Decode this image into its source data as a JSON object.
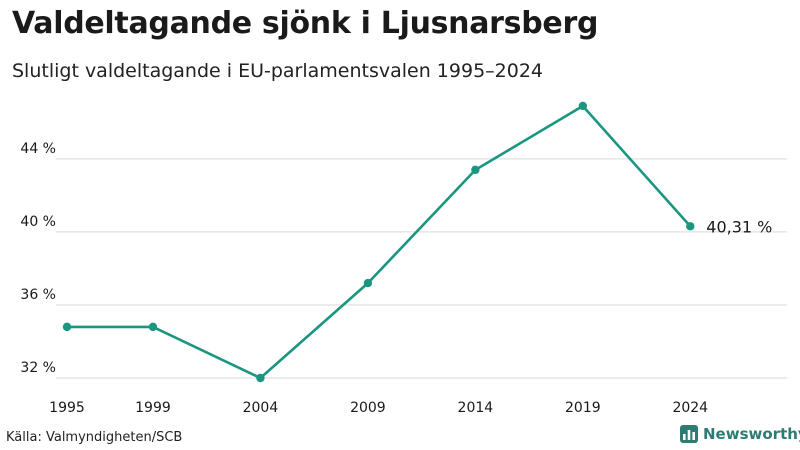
{
  "header": {
    "title": "Valdeltagande sjönk i Ljusnarsberg",
    "subtitle": "Slutligt valdeltagande i EU-parlamentsvalen 1995–2024"
  },
  "footer": {
    "source": "Källa: Valmyndigheten/SCB",
    "brand": "Newsworthy"
  },
  "colors": {
    "line": "#1a9680",
    "grid": "#d9d9d9",
    "brand": "#2e7b74"
  },
  "chart_data": {
    "type": "line",
    "title": "Valdeltagande sjönk i Ljusnarsberg",
    "subtitle": "Slutligt valdeltagande i EU-parlamentsvalen 1995–2024",
    "xlabel": "",
    "ylabel": "",
    "categories": [
      "1995",
      "1999",
      "2004",
      "2009",
      "2014",
      "2019",
      "2024"
    ],
    "x": [
      1995,
      1999,
      2004,
      2009,
      2014,
      2019,
      2024
    ],
    "values": [
      34.8,
      34.8,
      32.0,
      37.2,
      43.4,
      46.9,
      40.31
    ],
    "ylim": [
      32,
      47.5
    ],
    "xlim": [
      1995,
      2028.5
    ],
    "y_ticks": [
      32,
      36,
      40,
      44
    ],
    "y_tick_labels": [
      "32 %",
      "36 %",
      "40 %",
      "44 %"
    ],
    "grid": true,
    "end_label": "40,31 %"
  }
}
